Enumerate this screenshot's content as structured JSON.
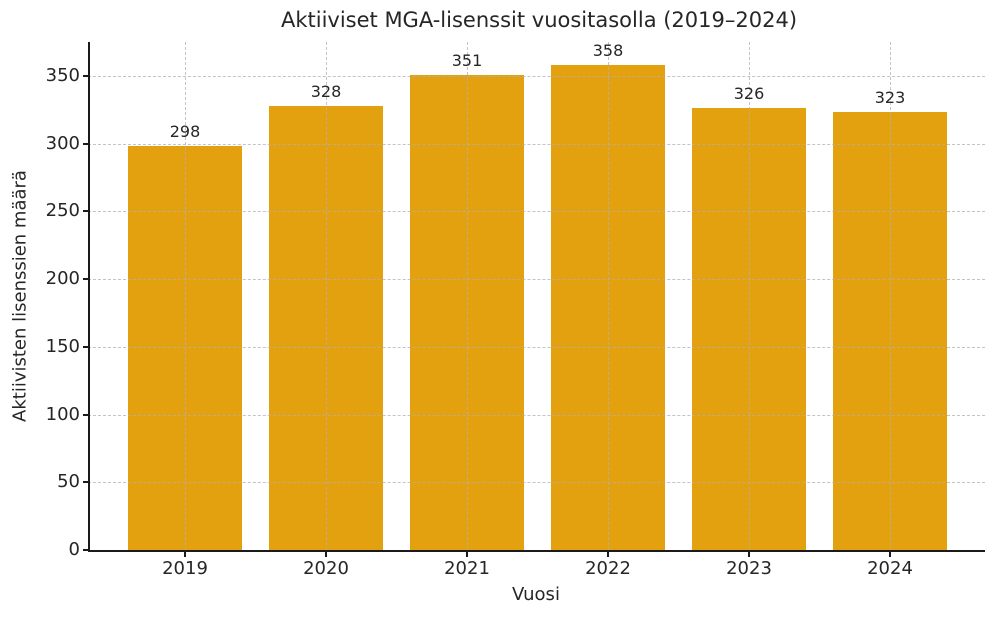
{
  "chart_data": {
    "type": "bar",
    "title": "Aktiiviset MGA-lisenssit vuositasolla (2019–2024)",
    "xlabel": "Vuosi",
    "ylabel": "Aktiivisten lisenssien määrä",
    "categories": [
      "2019",
      "2020",
      "2021",
      "2022",
      "2023",
      "2024"
    ],
    "values": [
      298,
      328,
      351,
      358,
      326,
      323
    ],
    "bar_value_labels": [
      "298",
      "328",
      "351",
      "358",
      "326",
      "323"
    ],
    "yticks": [
      0,
      50,
      100,
      150,
      200,
      250,
      300,
      350
    ],
    "ylim": [
      0,
      375
    ],
    "bar_color": "#e3a00f",
    "grid": true,
    "grid_style": "dashed",
    "grid_orientation": "both",
    "legend_position": "none",
    "background_color": "#ffffff",
    "text_color": "#262626"
  }
}
